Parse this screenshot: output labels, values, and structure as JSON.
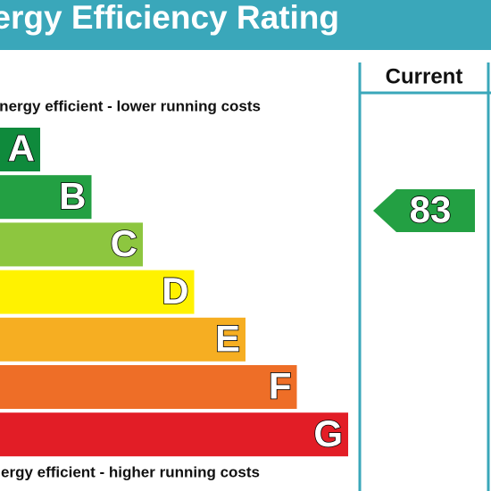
{
  "title": "Energy Efficiency Rating",
  "top_note": "Very energy efficient - lower running costs",
  "bottom_note": "Not energy efficient - higher running costs",
  "column_header": "Current",
  "bands": [
    {
      "letter": "A",
      "color": "#0f8a3c"
    },
    {
      "letter": "B",
      "color": "#23a043"
    },
    {
      "letter": "C",
      "color": "#8dc63f"
    },
    {
      "letter": "D",
      "color": "#fff200"
    },
    {
      "letter": "E",
      "color": "#f6ae22"
    },
    {
      "letter": "F",
      "color": "#ee6e27"
    },
    {
      "letter": "G",
      "color": "#e21d26"
    }
  ],
  "current": {
    "value": 83,
    "band": 1
  }
}
